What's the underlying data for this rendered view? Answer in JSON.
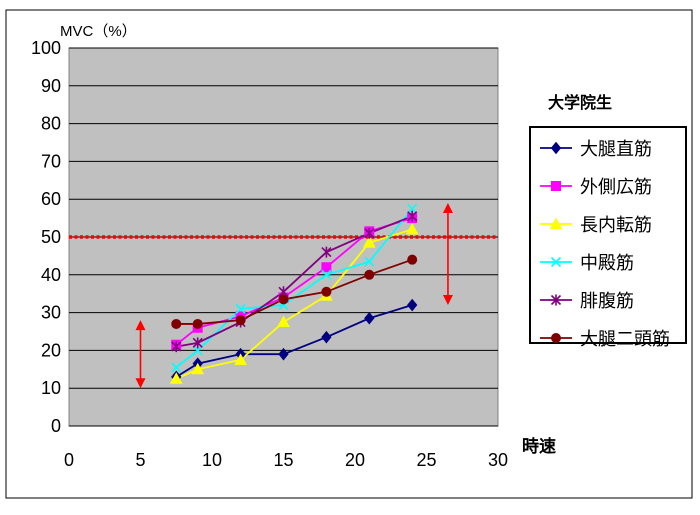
{
  "chart_data": {
    "type": "line",
    "title": "",
    "ylabel": "MVC（%）",
    "xlabel": "時速",
    "xlim": [
      0,
      30
    ],
    "ylim": [
      0,
      100
    ],
    "xticks": [
      0,
      5,
      10,
      15,
      20,
      25,
      30
    ],
    "yticks": [
      0,
      10,
      20,
      30,
      40,
      50,
      60,
      70,
      80,
      90,
      100
    ],
    "grid": "horizontal",
    "legend_title": "大学院生",
    "legend_position": "right",
    "plot_background": "#c0c0c0",
    "series": [
      {
        "name": "大腿直筋",
        "color": "#000080",
        "marker": "diamond",
        "x": [
          7.5,
          9,
          12,
          15,
          18,
          21,
          24
        ],
        "y": [
          13,
          16.5,
          19,
          19,
          23.5,
          28.5,
          32
        ]
      },
      {
        "name": "外側広筋",
        "color": "#ff00ff",
        "marker": "square",
        "x": [
          7.5,
          9,
          12,
          15,
          18,
          21,
          24
        ],
        "y": [
          21.5,
          26,
          29,
          34,
          42,
          51.5,
          55
        ]
      },
      {
        "name": "長内転筋",
        "color": "#ffff00",
        "marker": "triangle",
        "x": [
          7.5,
          9,
          12,
          15,
          18,
          21,
          24
        ],
        "y": [
          12.5,
          15,
          17.5,
          27.5,
          34.5,
          48.5,
          52
        ]
      },
      {
        "name": "中殿筋",
        "color": "#00ffff",
        "marker": "x",
        "x": [
          7.5,
          9,
          12,
          15,
          18,
          21,
          24
        ],
        "y": [
          15.5,
          20,
          31,
          32,
          40,
          43.5,
          57.5
        ]
      },
      {
        "name": "腓腹筋",
        "color": "#800080",
        "marker": "star",
        "x": [
          7.5,
          9,
          12,
          15,
          18,
          21,
          24
        ],
        "y": [
          21,
          22,
          27.5,
          35.5,
          46,
          51,
          55.5
        ]
      },
      {
        "name": "大腿二頭筋",
        "color": "#800000",
        "marker": "circle",
        "x": [
          7.5,
          9,
          12,
          15,
          18,
          21,
          24
        ],
        "y": [
          27,
          27,
          28,
          33.5,
          35.5,
          40,
          44
        ]
      }
    ],
    "reference_line": {
      "y": 50,
      "color": "#ff0000",
      "style": "dotted"
    },
    "range_arrows": [
      {
        "x": 5,
        "y_from": 10,
        "y_to": 28,
        "color": "#ff0000"
      },
      {
        "x": 26.5,
        "y_from": 32,
        "y_to": 59,
        "color": "#ff0000"
      }
    ]
  }
}
